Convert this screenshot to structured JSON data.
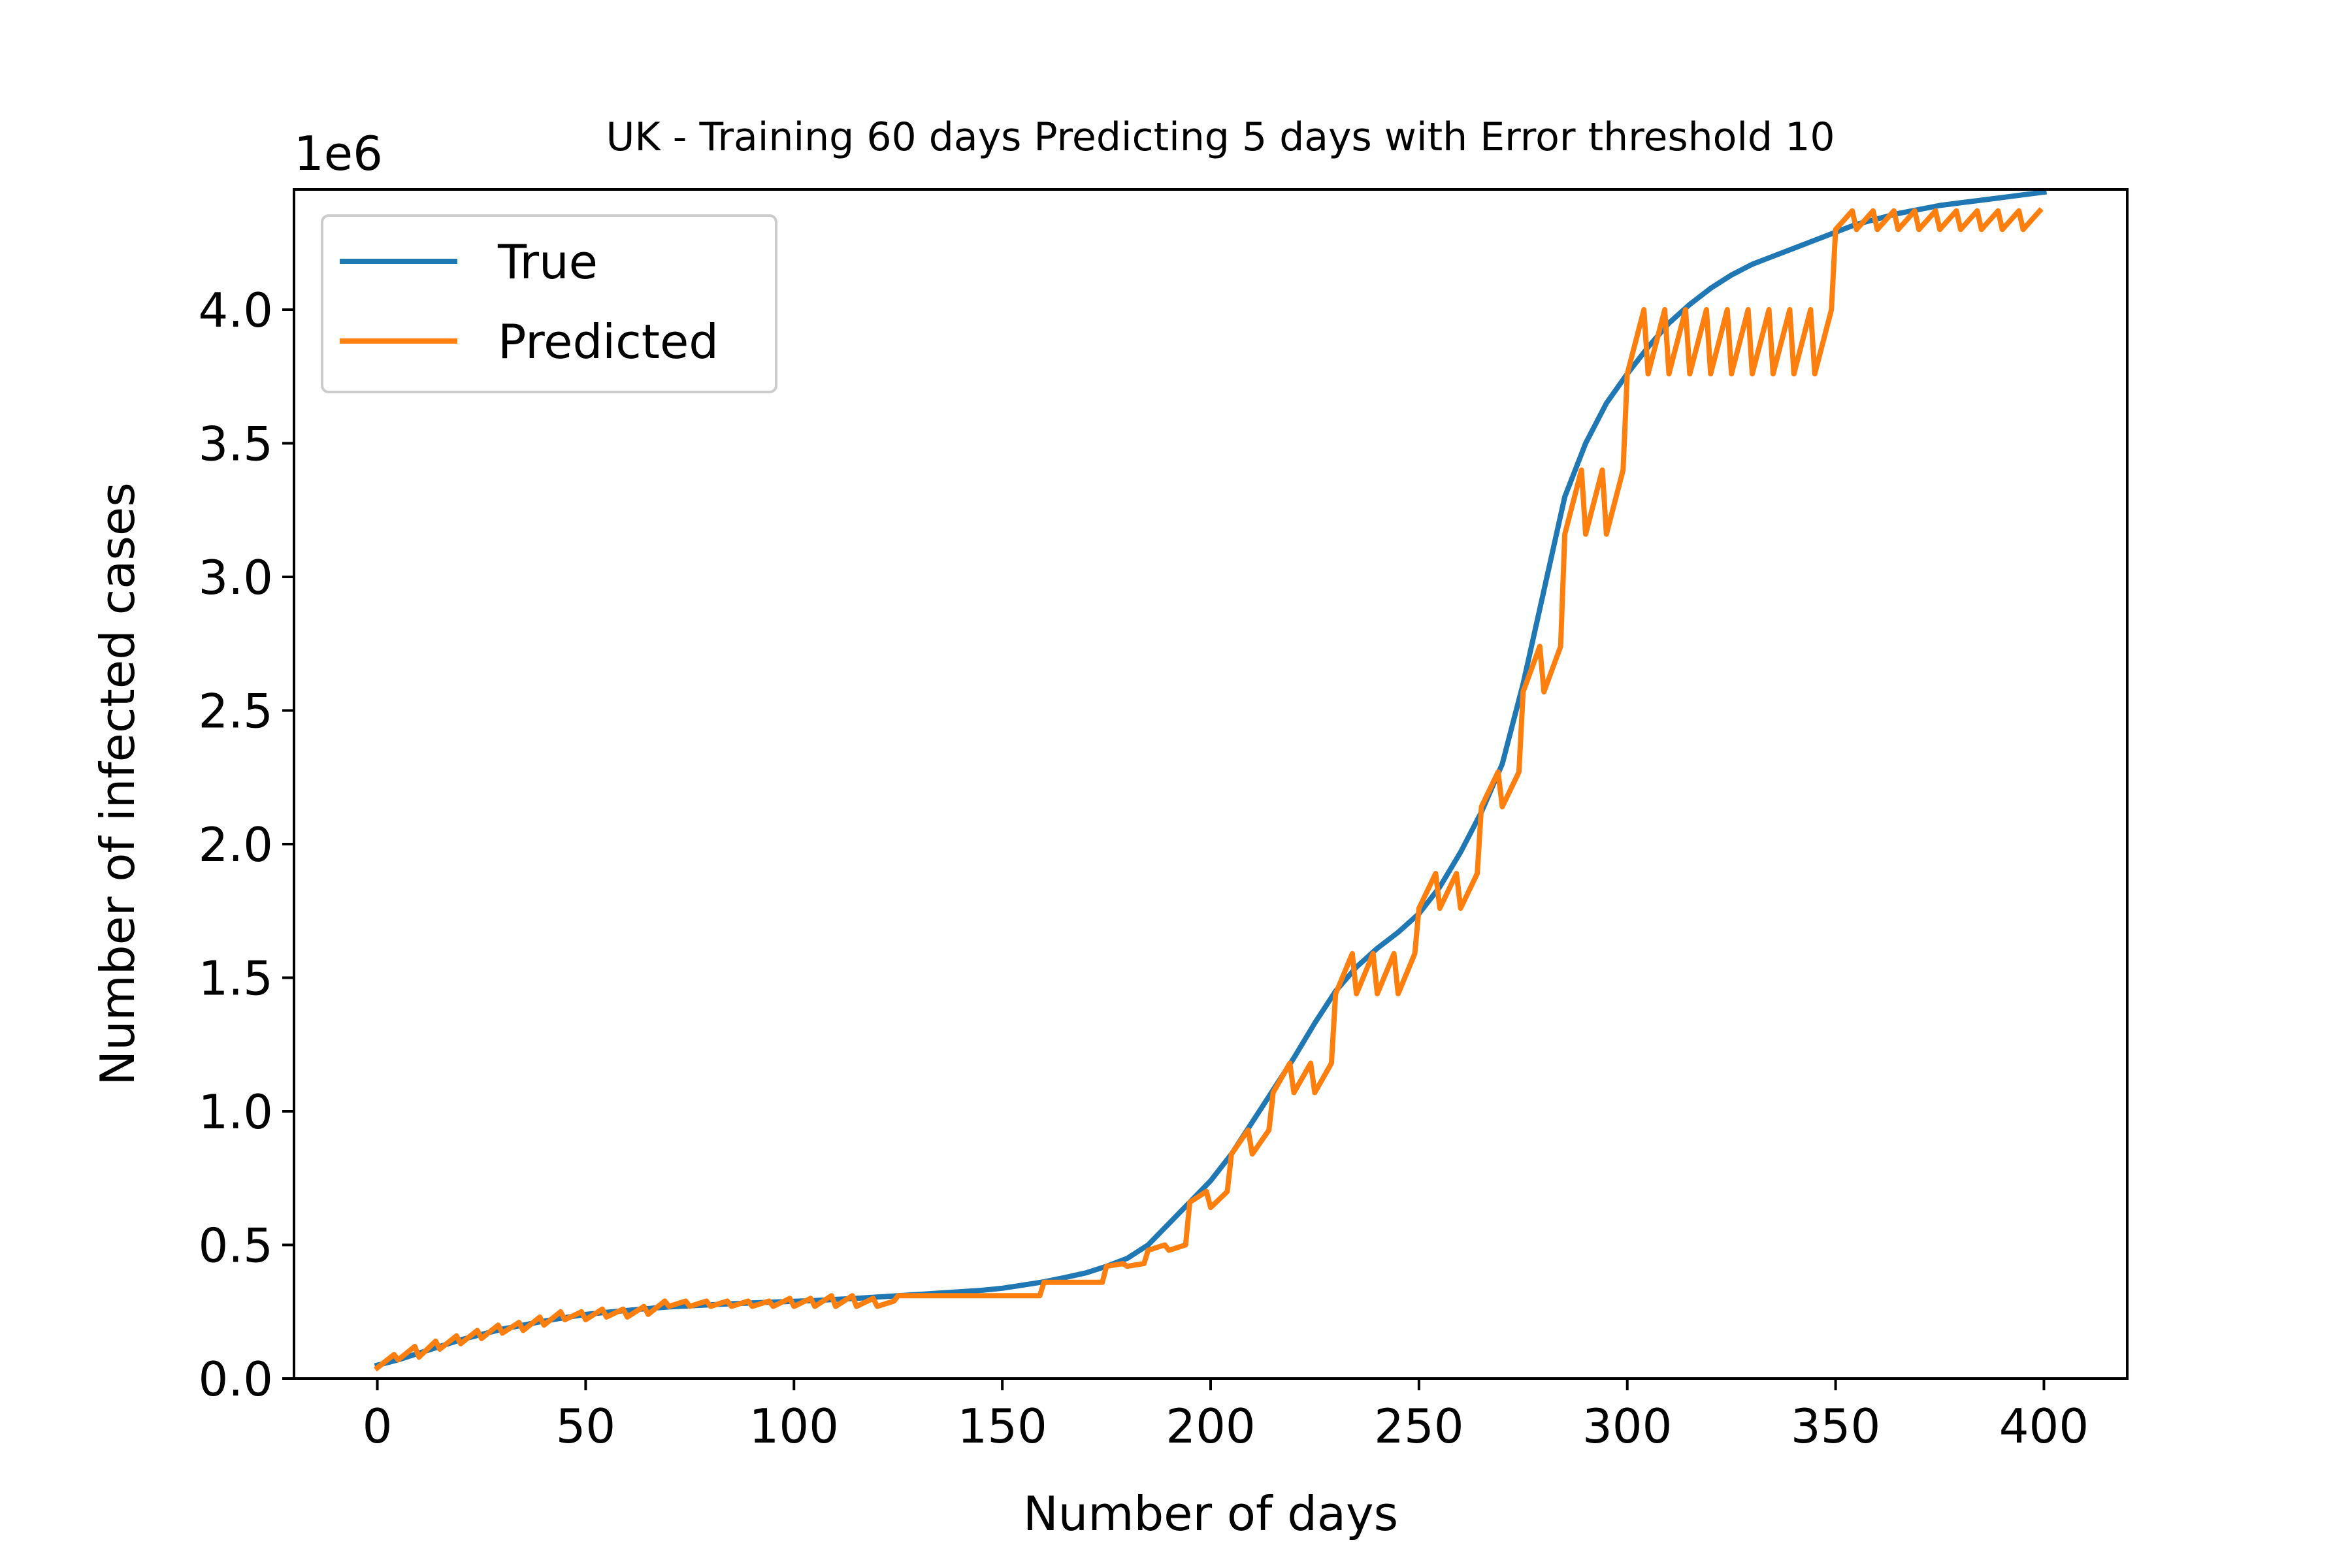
{
  "chart_data": {
    "type": "line",
    "title": "UK - Training 60 days Predicting 5 days with Error threshold 10",
    "xlabel": "Number of days",
    "ylabel": "Number of infected cases",
    "y_scale_label": "1e6",
    "xlim": [
      -20,
      420
    ],
    "ylim": [
      0,
      4.45
    ],
    "xticks": [
      0,
      50,
      100,
      150,
      200,
      250,
      300,
      350,
      400
    ],
    "xtick_labels": [
      "0",
      "50",
      "100",
      "150",
      "200",
      "250",
      "300",
      "350",
      "400"
    ],
    "yticks": [
      0,
      0.5,
      1.0,
      1.5,
      2.0,
      2.5,
      3.0,
      3.5,
      4.0
    ],
    "ytick_labels": [
      "0.0",
      "0.5",
      "1.0",
      "1.5",
      "2.0",
      "2.5",
      "3.0",
      "3.5",
      "4.0"
    ],
    "grid": false,
    "legend_position": "top-left",
    "series": [
      {
        "name": "True",
        "color": "#1f77b4",
        "x": [
          0,
          5,
          10,
          15,
          20,
          25,
          30,
          35,
          40,
          45,
          50,
          55,
          60,
          65,
          70,
          75,
          80,
          85,
          90,
          95,
          100,
          105,
          110,
          115,
          120,
          125,
          130,
          135,
          140,
          145,
          150,
          155,
          160,
          165,
          170,
          175,
          180,
          185,
          190,
          195,
          200,
          205,
          210,
          215,
          220,
          225,
          230,
          235,
          240,
          245,
          250,
          255,
          260,
          265,
          270,
          275,
          280,
          285,
          290,
          295,
          300,
          305,
          310,
          315,
          320,
          325,
          330,
          335,
          340,
          345,
          350,
          355,
          360,
          365,
          370,
          375,
          380,
          385,
          390,
          395,
          400
        ],
        "values": [
          0.05,
          0.07,
          0.095,
          0.12,
          0.145,
          0.165,
          0.185,
          0.2,
          0.215,
          0.228,
          0.24,
          0.248,
          0.255,
          0.262,
          0.268,
          0.272,
          0.276,
          0.28,
          0.283,
          0.286,
          0.289,
          0.292,
          0.296,
          0.3,
          0.305,
          0.31,
          0.315,
          0.32,
          0.325,
          0.33,
          0.338,
          0.35,
          0.362,
          0.378,
          0.395,
          0.42,
          0.45,
          0.5,
          0.58,
          0.66,
          0.74,
          0.84,
          0.96,
          1.08,
          1.2,
          1.33,
          1.45,
          1.54,
          1.61,
          1.67,
          1.74,
          1.84,
          1.97,
          2.12,
          2.3,
          2.6,
          2.95,
          3.3,
          3.5,
          3.65,
          3.76,
          3.86,
          3.95,
          4.02,
          4.08,
          4.13,
          4.17,
          4.2,
          4.23,
          4.26,
          4.29,
          4.32,
          4.34,
          4.36,
          4.375,
          4.39,
          4.4,
          4.41,
          4.42,
          4.43,
          4.44
        ]
      },
      {
        "name": "Predicted",
        "color": "#ff7f0e",
        "x": [
          0,
          4,
          5,
          9,
          10,
          14,
          15,
          19,
          20,
          24,
          25,
          29,
          30,
          34,
          35,
          39,
          40,
          44,
          45,
          49,
          50,
          54,
          55,
          59,
          60,
          64,
          65,
          69,
          70,
          74,
          75,
          79,
          80,
          84,
          85,
          89,
          90,
          94,
          95,
          99,
          100,
          104,
          105,
          109,
          110,
          114,
          115,
          119,
          120,
          124,
          125,
          129,
          130,
          134,
          135,
          139,
          140,
          144,
          145,
          149,
          150,
          154,
          155,
          159,
          160,
          164,
          165,
          169,
          170,
          174,
          175,
          179,
          180,
          184,
          185,
          189,
          190,
          194,
          195,
          199,
          200,
          204,
          205,
          209,
          210,
          214,
          215,
          219,
          220,
          224,
          225,
          229,
          230,
          234,
          235,
          239,
          240,
          244,
          245,
          249,
          250,
          254,
          255,
          259,
          260,
          264,
          265,
          269,
          270,
          274,
          275,
          279,
          280,
          284,
          285,
          289,
          290,
          294,
          295,
          299,
          300,
          304,
          305,
          309,
          310,
          314,
          315,
          319,
          320,
          324,
          325,
          329,
          330,
          334,
          335,
          339,
          340,
          344,
          345,
          349,
          350,
          354,
          355,
          359,
          360,
          364,
          365,
          369,
          370,
          374,
          375,
          379,
          380,
          384,
          385,
          389,
          390,
          394,
          395,
          399
        ],
        "values": [
          0.04,
          0.09,
          0.07,
          0.12,
          0.08,
          0.14,
          0.11,
          0.16,
          0.13,
          0.18,
          0.15,
          0.2,
          0.17,
          0.21,
          0.18,
          0.23,
          0.2,
          0.25,
          0.22,
          0.25,
          0.22,
          0.26,
          0.23,
          0.26,
          0.23,
          0.27,
          0.24,
          0.29,
          0.27,
          0.29,
          0.27,
          0.29,
          0.27,
          0.29,
          0.27,
          0.29,
          0.27,
          0.29,
          0.27,
          0.3,
          0.27,
          0.3,
          0.27,
          0.31,
          0.27,
          0.31,
          0.27,
          0.3,
          0.27,
          0.29,
          0.31,
          0.31,
          0.31,
          0.31,
          0.31,
          0.31,
          0.31,
          0.31,
          0.31,
          0.31,
          0.31,
          0.31,
          0.31,
          0.31,
          0.36,
          0.36,
          0.36,
          0.36,
          0.36,
          0.36,
          0.42,
          0.43,
          0.42,
          0.43,
          0.48,
          0.5,
          0.48,
          0.5,
          0.66,
          0.7,
          0.64,
          0.7,
          0.84,
          0.93,
          0.84,
          0.93,
          1.07,
          1.18,
          1.07,
          1.18,
          1.07,
          1.18,
          1.44,
          1.59,
          1.44,
          1.59,
          1.44,
          1.59,
          1.44,
          1.59,
          1.76,
          1.89,
          1.76,
          1.89,
          1.76,
          1.89,
          2.14,
          2.27,
          2.14,
          2.27,
          2.57,
          2.74,
          2.57,
          2.74,
          3.16,
          3.4,
          3.16,
          3.4,
          3.16,
          3.4,
          3.76,
          4.0,
          3.76,
          4.0,
          3.76,
          4.0,
          3.76,
          4.0,
          3.76,
          4.0,
          3.76,
          4.0,
          3.76,
          4.0,
          3.76,
          4.0,
          3.76,
          4.0,
          3.76,
          4.0,
          4.3,
          4.37,
          4.3,
          4.37,
          4.3,
          4.37,
          4.3,
          4.37,
          4.3,
          4.37,
          4.3,
          4.37,
          4.3,
          4.37,
          4.3,
          4.37,
          4.3,
          4.37,
          4.3,
          4.37
        ]
      }
    ]
  }
}
